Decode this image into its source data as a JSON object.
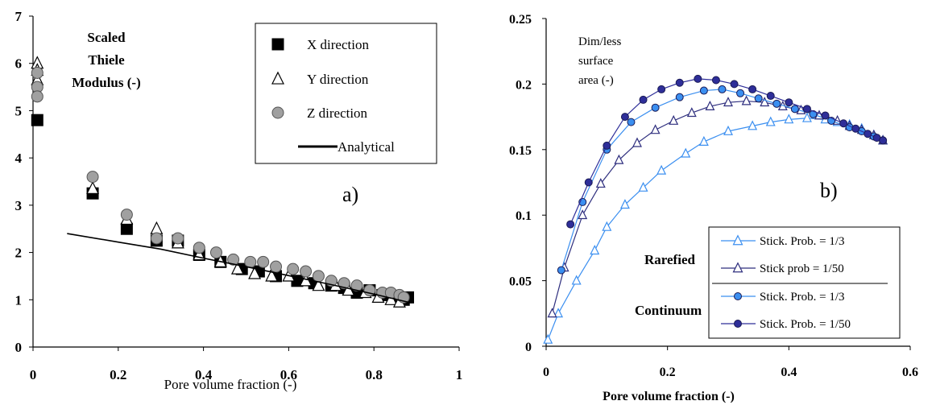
{
  "chart_data": [
    {
      "type": "scatter",
      "panel_label": "a)",
      "annotation_lines": [
        "Scaled",
        "Thiele",
        "Modulus (-)"
      ],
      "xlabel": "Pore volume fraction (-)",
      "ylabel": "",
      "xlim": [
        0,
        1
      ],
      "ylim": [
        0,
        7
      ],
      "xticks": [
        "0",
        "0.2",
        "0.4",
        "0.6",
        "0.8",
        "1"
      ],
      "xtick_values": [
        0,
        0.2,
        0.4,
        0.6,
        0.8,
        1
      ],
      "yticks": [
        "0",
        "1",
        "2",
        "3",
        "4",
        "5",
        "6",
        "7"
      ],
      "ytick_values": [
        0,
        1,
        2,
        3,
        4,
        5,
        6,
        7
      ],
      "grid": false,
      "legend_position": "top-right",
      "series": [
        {
          "name": "X direction",
          "marker": "square",
          "color": "#000000",
          "x": [
            0.01,
            0.14,
            0.22,
            0.29,
            0.34,
            0.39,
            0.44,
            0.49,
            0.53,
            0.57,
            0.62,
            0.66,
            0.7,
            0.73,
            0.76,
            0.79,
            0.82,
            0.85,
            0.87,
            0.88
          ],
          "y": [
            4.8,
            3.25,
            2.5,
            2.25,
            2.25,
            1.95,
            1.8,
            1.65,
            1.6,
            1.5,
            1.4,
            1.35,
            1.3,
            1.25,
            1.15,
            1.2,
            1.1,
            1.05,
            1.0,
            1.05
          ]
        },
        {
          "name": "Y direction",
          "marker": "triangle",
          "color": "#000000",
          "x": [
            0.01,
            0.01,
            0.01,
            0.14,
            0.22,
            0.29,
            0.34,
            0.39,
            0.44,
            0.48,
            0.52,
            0.56,
            0.6,
            0.64,
            0.67,
            0.71,
            0.74,
            0.78,
            0.81,
            0.84,
            0.86
          ],
          "y": [
            6.0,
            5.85,
            5.65,
            3.35,
            2.7,
            2.5,
            2.2,
            1.95,
            1.8,
            1.65,
            1.55,
            1.5,
            1.5,
            1.4,
            1.3,
            1.3,
            1.2,
            1.15,
            1.05,
            1.0,
            0.95
          ]
        },
        {
          "name": "Z direction",
          "marker": "circle",
          "color": "#a0a0a0",
          "x": [
            0.01,
            0.01,
            0.01,
            0.14,
            0.22,
            0.29,
            0.34,
            0.39,
            0.43,
            0.47,
            0.51,
            0.54,
            0.57,
            0.61,
            0.64,
            0.67,
            0.7,
            0.73,
            0.76,
            0.79,
            0.82,
            0.84,
            0.86,
            0.87
          ],
          "y": [
            5.5,
            5.3,
            5.8,
            3.6,
            2.8,
            2.3,
            2.3,
            2.1,
            2.0,
            1.85,
            1.8,
            1.8,
            1.7,
            1.65,
            1.6,
            1.5,
            1.4,
            1.35,
            1.3,
            1.2,
            1.15,
            1.15,
            1.1,
            1.05
          ]
        },
        {
          "name": "Analytical",
          "marker": "line",
          "color": "#000000",
          "x": [
            0.08,
            0.2,
            0.3,
            0.4,
            0.5,
            0.6,
            0.7,
            0.8,
            0.88
          ],
          "y": [
            2.4,
            2.22,
            2.07,
            1.88,
            1.7,
            1.51,
            1.32,
            1.12,
            0.95
          ]
        }
      ]
    },
    {
      "type": "line",
      "panel_label": "b)",
      "annotation_lines": [
        "Dim/less",
        "surface",
        "area (-)"
      ],
      "region_labels": [
        "Rarefied",
        "Continuum"
      ],
      "xlabel": "Pore volume fraction (-)",
      "ylabel": "",
      "xlim": [
        0,
        0.6
      ],
      "ylim": [
        0,
        0.25
      ],
      "xticks": [
        "0",
        "0.2",
        "0.4",
        "0.6"
      ],
      "xtick_values": [
        0,
        0.2,
        0.4,
        0.6
      ],
      "yticks": [
        "0",
        "0.05",
        "0.1",
        "0.15",
        "0.2",
        "0.25"
      ],
      "ytick_values": [
        0,
        0.05,
        0.1,
        0.15,
        0.2,
        0.25
      ],
      "grid": false,
      "legend_position": "bottom-right",
      "series": [
        {
          "name": "Stick. Prob. = 1/3",
          "group": "Rarefied",
          "marker": "triangle",
          "color": "#3b8ff0",
          "x": [
            0.003,
            0.02,
            0.05,
            0.08,
            0.1,
            0.13,
            0.16,
            0.19,
            0.23,
            0.26,
            0.3,
            0.34,
            0.37,
            0.4,
            0.43,
            0.46,
            0.48,
            0.5,
            0.52,
            0.54,
            0.555
          ],
          "y": [
            0.005,
            0.025,
            0.05,
            0.073,
            0.091,
            0.108,
            0.121,
            0.134,
            0.147,
            0.156,
            0.164,
            0.168,
            0.171,
            0.173,
            0.174,
            0.173,
            0.171,
            0.169,
            0.166,
            0.161,
            0.157
          ]
        },
        {
          "name": "Stick prob = 1/50",
          "group": "Rarefied",
          "marker": "triangle",
          "color": "#2e2e7e",
          "x": [
            0.01,
            0.03,
            0.06,
            0.09,
            0.12,
            0.15,
            0.18,
            0.21,
            0.24,
            0.27,
            0.3,
            0.33,
            0.36,
            0.39,
            0.42,
            0.45,
            0.48,
            0.5,
            0.52,
            0.54,
            0.555
          ],
          "y": [
            0.025,
            0.06,
            0.1,
            0.124,
            0.142,
            0.155,
            0.165,
            0.172,
            0.178,
            0.183,
            0.186,
            0.187,
            0.186,
            0.183,
            0.18,
            0.176,
            0.172,
            0.168,
            0.165,
            0.161,
            0.157
          ]
        },
        {
          "name": "Stick. Prob. = 1/3",
          "group": "Continuum",
          "marker": "circle",
          "color": "#3b8ff0",
          "x": [
            0.025,
            0.06,
            0.1,
            0.14,
            0.18,
            0.22,
            0.26,
            0.29,
            0.32,
            0.35,
            0.38,
            0.41,
            0.44,
            0.47,
            0.5,
            0.52,
            0.54,
            0.555
          ],
          "y": [
            0.058,
            0.11,
            0.15,
            0.171,
            0.182,
            0.19,
            0.195,
            0.196,
            0.193,
            0.189,
            0.185,
            0.181,
            0.177,
            0.172,
            0.167,
            0.164,
            0.16,
            0.157
          ]
        },
        {
          "name": "Stick. Prob. = 1/50",
          "group": "Continuum",
          "marker": "circle",
          "color": "#2e2e99",
          "x": [
            0.04,
            0.07,
            0.1,
            0.13,
            0.16,
            0.19,
            0.22,
            0.25,
            0.28,
            0.31,
            0.34,
            0.37,
            0.4,
            0.43,
            0.46,
            0.49,
            0.51,
            0.53,
            0.545,
            0.555
          ],
          "y": [
            0.093,
            0.125,
            0.153,
            0.175,
            0.188,
            0.196,
            0.201,
            0.204,
            0.203,
            0.2,
            0.196,
            0.191,
            0.186,
            0.181,
            0.176,
            0.17,
            0.166,
            0.162,
            0.159,
            0.157
          ]
        }
      ]
    }
  ]
}
